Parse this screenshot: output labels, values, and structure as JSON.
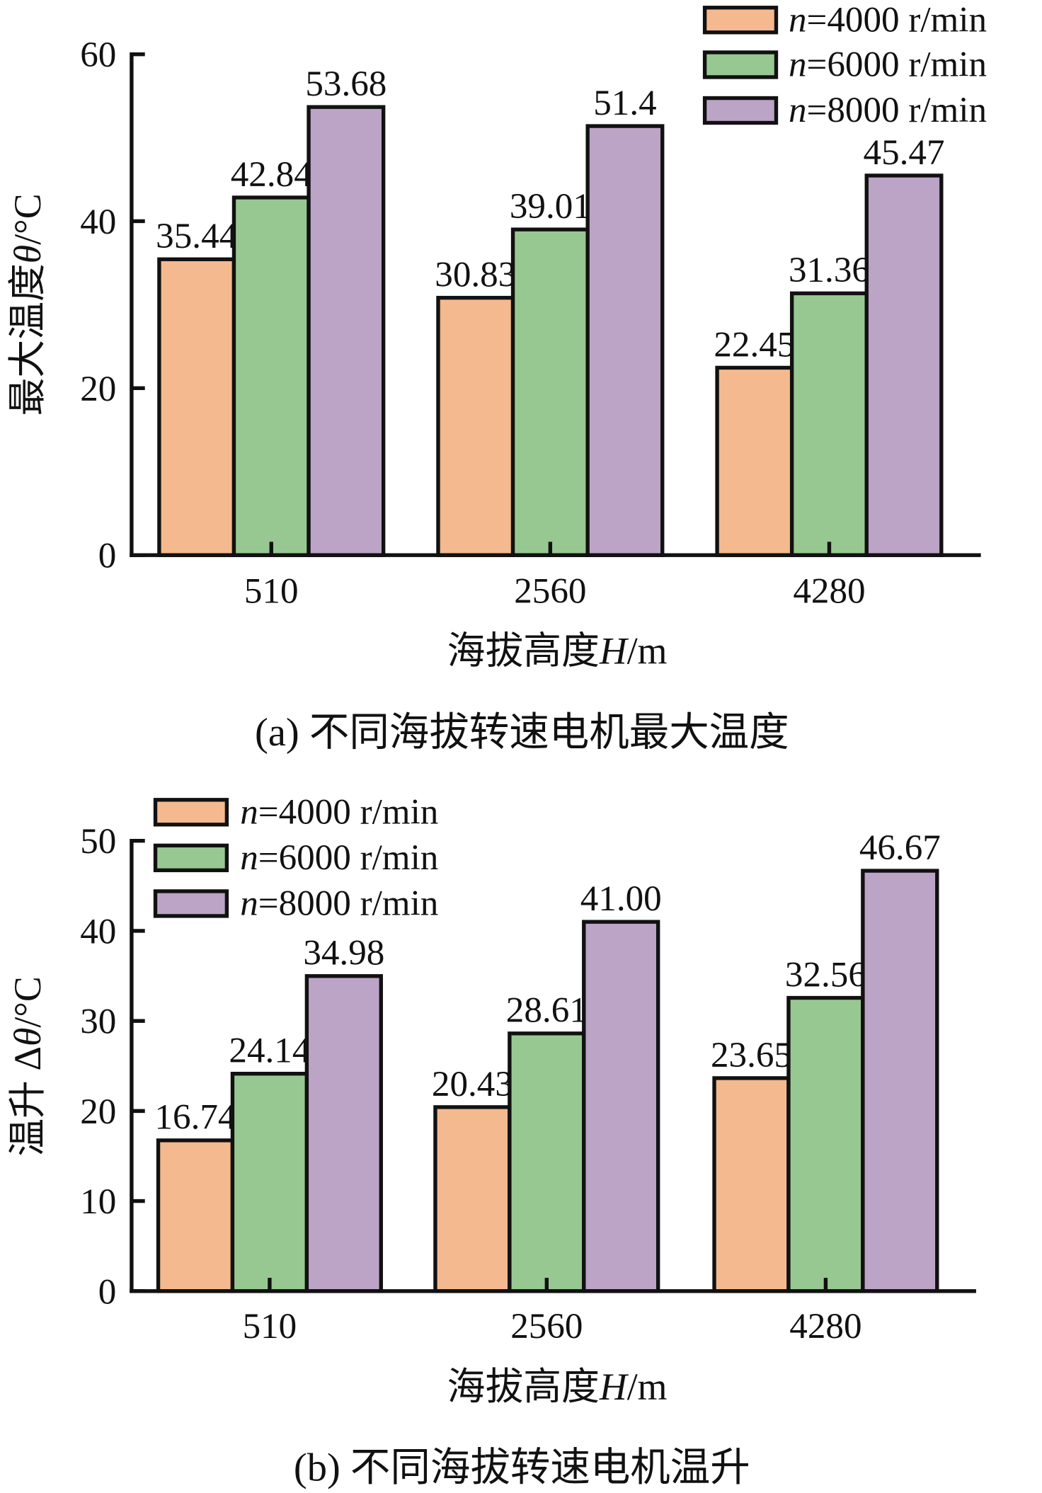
{
  "colors": {
    "s0": "#F4B98E",
    "s1": "#98C891",
    "s2": "#BBA4C6",
    "stroke": "#111111"
  },
  "chart_data": [
    {
      "type": "bar",
      "title": "(a) 不同海拔转速电机最大温度",
      "xlabel": "海拔高度H/m",
      "xlabel_parts": [
        "海拔高度",
        "H",
        "/m"
      ],
      "ylabel": "最大温度θ/°C",
      "ylabel_parts": [
        "最大温度",
        "θ",
        "/°C"
      ],
      "categories": [
        "510",
        "2560",
        "4280"
      ],
      "ylim": [
        0,
        60
      ],
      "yticks": [
        0,
        20,
        40,
        60
      ],
      "legend_position": "top-right",
      "series": [
        {
          "name": "n=4000 r/min",
          "name_parts": [
            "n",
            "=4000 r/min"
          ],
          "values": [
            35.44,
            30.83,
            22.45
          ],
          "labels": [
            "35.44",
            "30.83",
            "22.45"
          ]
        },
        {
          "name": "n=6000 r/min",
          "name_parts": [
            "n",
            "=6000 r/min"
          ],
          "values": [
            42.84,
            39.01,
            31.36
          ],
          "labels": [
            "42.84",
            "39.01",
            "31.36"
          ]
        },
        {
          "name": "n=8000 r/min",
          "name_parts": [
            "n",
            "=8000 r/min"
          ],
          "values": [
            53.68,
            51.4,
            45.47
          ],
          "labels": [
            "53.68",
            "51.4",
            "45.47"
          ]
        }
      ]
    },
    {
      "type": "bar",
      "title": "(b) 不同海拔转速电机温升",
      "xlabel": "海拔高度H/m",
      "xlabel_parts": [
        "海拔高度",
        "H",
        "/m"
      ],
      "ylabel": "温升Δθ/°C",
      "ylabel_parts": [
        "温升 Δ",
        "θ",
        "/°C"
      ],
      "categories": [
        "510",
        "2560",
        "4280"
      ],
      "ylim": [
        0,
        50
      ],
      "yticks": [
        0,
        10,
        20,
        30,
        40,
        50
      ],
      "legend_position": "top-left",
      "series": [
        {
          "name": "n=4000 r/min",
          "name_parts": [
            "n",
            "=4000 r/min"
          ],
          "values": [
            16.74,
            20.43,
            23.65
          ],
          "labels": [
            "16.74",
            "20.43",
            "23.65"
          ]
        },
        {
          "name": "n=6000 r/min",
          "name_parts": [
            "n",
            "=6000 r/min"
          ],
          "values": [
            24.14,
            28.61,
            32.56
          ],
          "labels": [
            "24.14",
            "28.61",
            "32.56"
          ]
        },
        {
          "name": "n=8000 r/min",
          "name_parts": [
            "n",
            "=8000 r/min"
          ],
          "values": [
            34.98,
            41.0,
            46.67
          ],
          "labels": [
            "34.98",
            "41.00",
            "46.67"
          ]
        }
      ]
    }
  ]
}
